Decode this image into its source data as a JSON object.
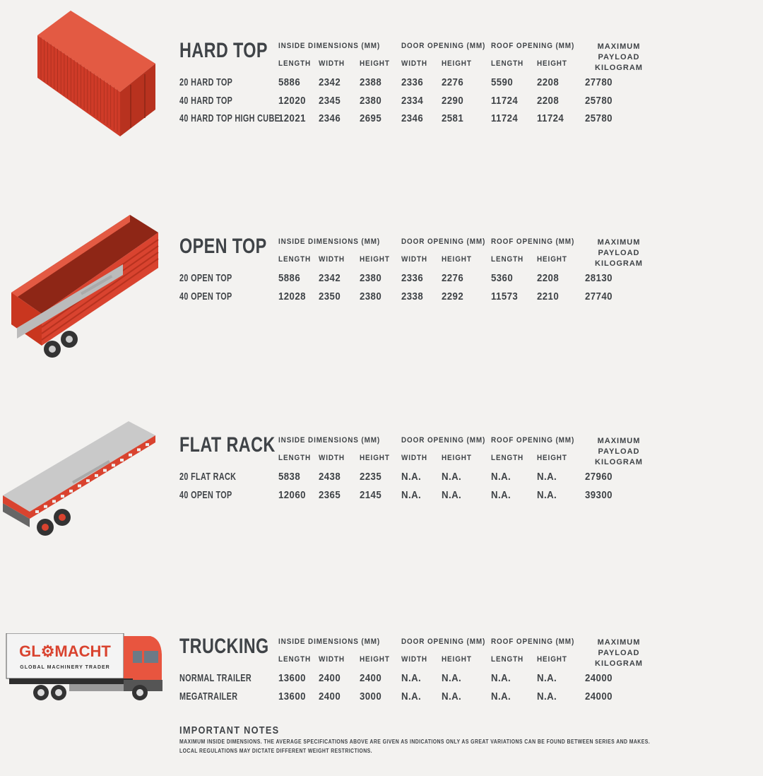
{
  "column_groups": {
    "inside": "INSIDE DIMENSIONS (MM)",
    "door": "DOOR OPENING (MM)",
    "roof": "ROOF OPENING (MM)",
    "payload_line1": "MAXIMUM PAYLOAD",
    "payload_line2": "KILOGRAM"
  },
  "sub_headers": [
    "LENGTH",
    "WIDTH",
    "HEIGHT",
    "WIDTH",
    "HEIGHT",
    "LENGTH",
    "HEIGHT"
  ],
  "colors": {
    "text": "#3f4347",
    "container_red": "#d9432f",
    "background": "#f3f2f0",
    "truck_cab": "#e8553f"
  },
  "sections": [
    {
      "title": "HARD TOP",
      "illustration": "hard-top-container",
      "rows": [
        [
          "20 HARD TOP",
          "5886",
          "2342",
          "2388",
          "2336",
          "2276",
          "5590",
          "2208",
          "27780"
        ],
        [
          "40 HARD TOP",
          "12020",
          "2345",
          "2380",
          "2334",
          "2290",
          "11724",
          "2208",
          "25780"
        ],
        [
          "40 HARD TOP HIGH CUBE",
          "12021",
          "2346",
          "2695",
          "2346",
          "2581",
          "11724",
          "11724",
          "25780"
        ]
      ]
    },
    {
      "title": "OPEN TOP",
      "illustration": "open-top-trailer",
      "rows": [
        [
          "20 OPEN TOP",
          "5886",
          "2342",
          "2380",
          "2336",
          "2276",
          "5360",
          "2208",
          "28130"
        ],
        [
          "40 OPEN TOP",
          "12028",
          "2350",
          "2380",
          "2338",
          "2292",
          "11573",
          "2210",
          "27740"
        ]
      ]
    },
    {
      "title": "FLAT RACK",
      "illustration": "flat-rack-trailer",
      "rows": [
        [
          "20 FLAT RACK",
          "5838",
          "2438",
          "2235",
          "N.A.",
          "N.A.",
          "N.A.",
          "N.A.",
          "27960"
        ],
        [
          "40 OPEN TOP",
          "12060",
          "2365",
          "2145",
          "N.A.",
          "N.A.",
          "N.A.",
          "N.A.",
          "39300"
        ]
      ]
    },
    {
      "title": "TRUCKING",
      "illustration": "truck",
      "rows": [
        [
          "NORMAL TRAILER",
          "13600",
          "2400",
          "2400",
          "N.A.",
          "N.A.",
          "N.A.",
          "N.A.",
          "24000"
        ],
        [
          "MEGATRAILER",
          "13600",
          "2400",
          "3000",
          "N.A.",
          "N.A.",
          "N.A.",
          "N.A.",
          "24000"
        ]
      ]
    }
  ],
  "logo": {
    "name": "GLOMACHT",
    "tagline": "GLOBAL MACHINERY TRADER"
  },
  "notes": {
    "heading": "IMPORTANT NOTES",
    "line1": "MAXIMUM INSIDE DIMENSIONS. THE AVERAGE SPECIFICATIONS ABOVE ARE GIVEN AS INDICATIONS ONLY AS GREAT VARIATIONS CAN BE FOUND BETWEEN SERIES AND MAKES.",
    "line2": "LOCAL REGULATIONS MAY DICTATE DIFFERENT WEIGHT RESTRICTIONS."
  }
}
